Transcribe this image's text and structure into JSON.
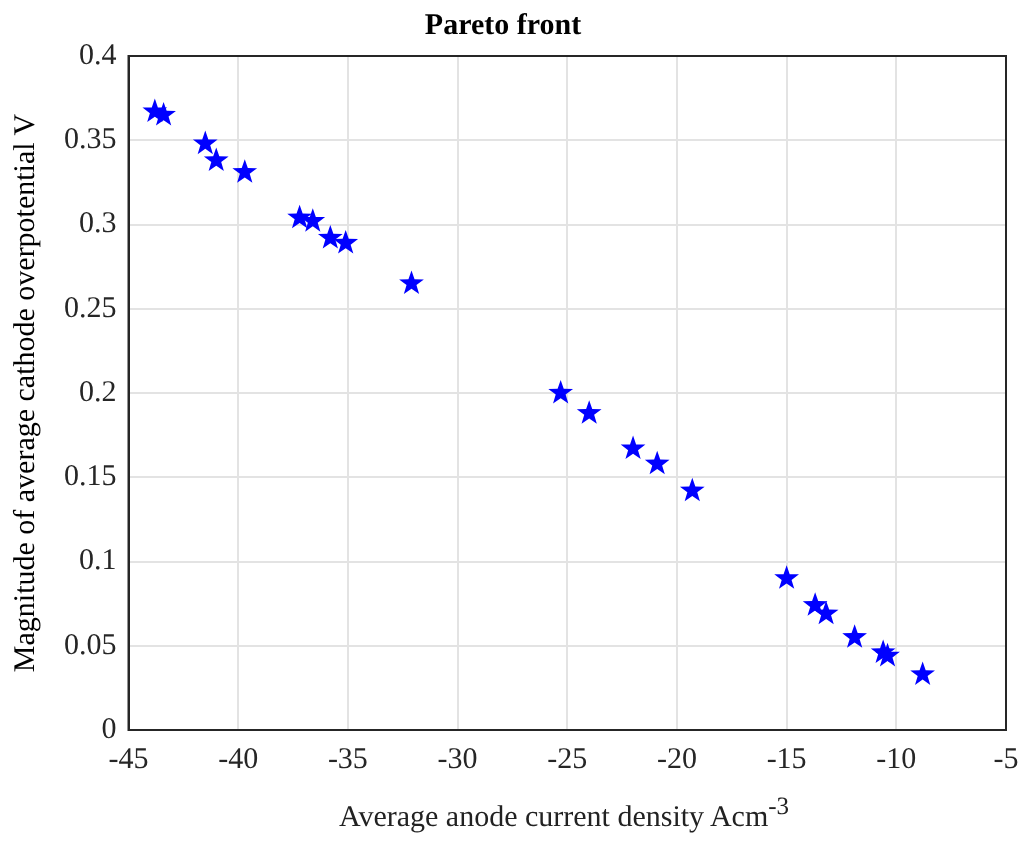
{
  "chart_data": {
    "type": "scatter",
    "title": "Pareto front",
    "xlabel": "Average anode current density Acm$^{-3}$",
    "ylabel": "Magnitude of average cathode overpotential V",
    "x": [
      -43.8,
      -43.4,
      -41.5,
      -41,
      -39.7,
      -37.2,
      -36.6,
      -35.8,
      -35.1,
      -32.1,
      -25.3,
      -24,
      -22,
      -20.9,
      -19.3,
      -15,
      -13.7,
      -13.2,
      -11.9,
      -10.6,
      -10.4,
      -8.8
    ],
    "values": [
      0.367,
      0.365,
      0.348,
      0.338,
      0.331,
      0.304,
      0.302,
      0.292,
      0.289,
      0.265,
      0.2,
      0.188,
      0.167,
      0.158,
      0.142,
      0.09,
      0.074,
      0.069,
      0.055,
      0.046,
      0.044,
      0.033
    ],
    "color": "#0000ff",
    "marker": "star",
    "xlim": [
      -45,
      -5
    ],
    "xticks": [
      -45,
      -40,
      -35,
      -30,
      -25,
      -20,
      -15,
      -10,
      -5
    ],
    "ylim": [
      0,
      0.4
    ],
    "yticks": [
      0,
      0.05,
      0.1,
      0.15,
      0.2,
      0.25,
      0.3,
      0.35,
      0.4
    ],
    "grid": true
  }
}
